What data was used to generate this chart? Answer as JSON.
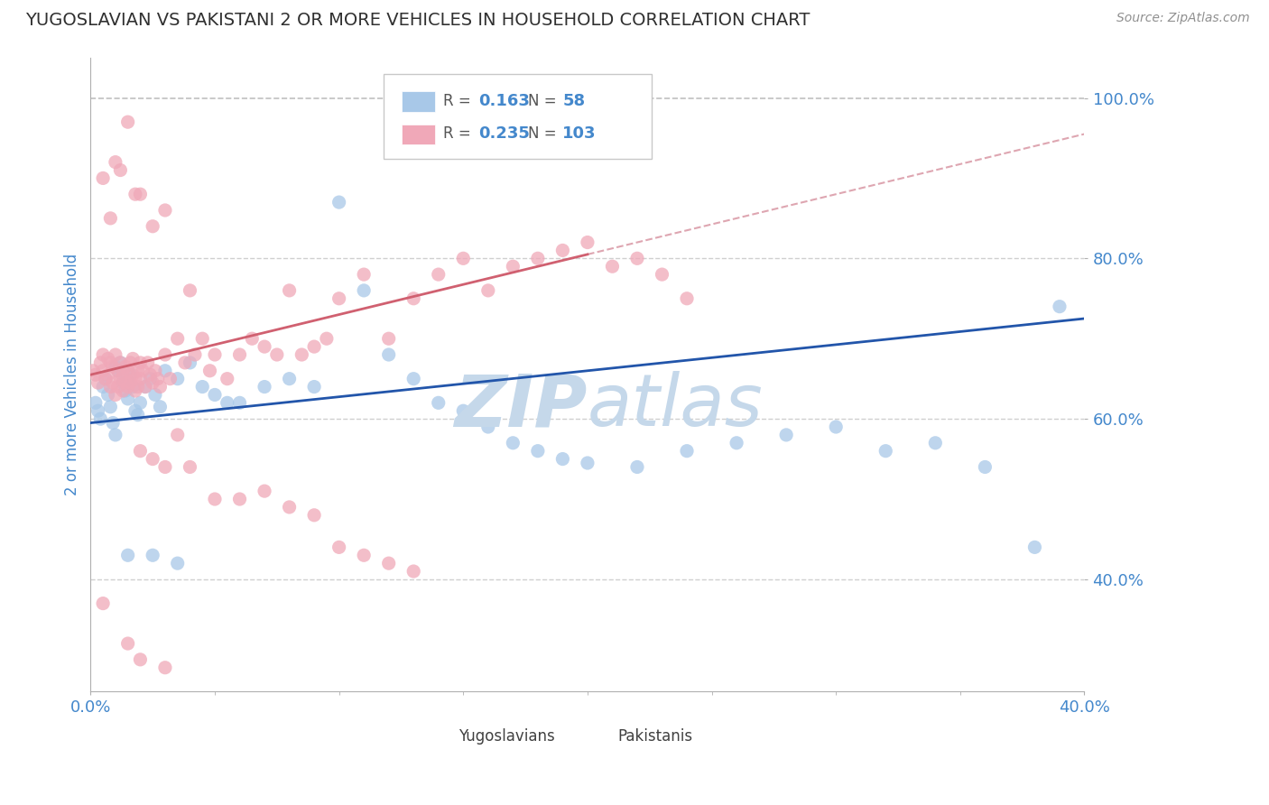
{
  "title": "YUGOSLAVIAN VS PAKISTANI 2 OR MORE VEHICLES IN HOUSEHOLD CORRELATION CHART",
  "source": "Source: ZipAtlas.com",
  "ylabel": "2 or more Vehicles in Household",
  "ytick_labels": [
    "40.0%",
    "60.0%",
    "80.0%",
    "100.0%"
  ],
  "ytick_values": [
    0.4,
    0.6,
    0.8,
    1.0
  ],
  "xlim": [
    0.0,
    0.4
  ],
  "ylim": [
    0.26,
    1.05
  ],
  "blue_color": "#a8c8e8",
  "pink_color": "#f0a8b8",
  "blue_line_color": "#2255aa",
  "pink_line_color": "#d06070",
  "pink_dash_color": "#d08090",
  "grid_color": "#d0d0d0",
  "watermark_color": "#c5d8ea",
  "title_color": "#303030",
  "tick_label_color": "#4488cc",
  "r_value_color": "#4488cc",
  "blue_r": "0.163",
  "blue_n": "58",
  "pink_r": "0.235",
  "pink_n": "103",
  "blue_scatter_x": [
    0.002,
    0.003,
    0.004,
    0.005,
    0.006,
    0.007,
    0.008,
    0.009,
    0.01,
    0.01,
    0.011,
    0.012,
    0.013,
    0.014,
    0.015,
    0.016,
    0.017,
    0.018,
    0.019,
    0.02,
    0.022,
    0.024,
    0.026,
    0.028,
    0.03,
    0.035,
    0.04,
    0.045,
    0.05,
    0.055,
    0.06,
    0.07,
    0.08,
    0.09,
    0.1,
    0.11,
    0.12,
    0.13,
    0.14,
    0.15,
    0.16,
    0.17,
    0.18,
    0.19,
    0.2,
    0.22,
    0.24,
    0.26,
    0.28,
    0.3,
    0.32,
    0.34,
    0.36,
    0.38,
    0.015,
    0.025,
    0.035,
    0.39
  ],
  "blue_scatter_y": [
    0.62,
    0.61,
    0.6,
    0.64,
    0.65,
    0.63,
    0.615,
    0.595,
    0.58,
    0.665,
    0.66,
    0.67,
    0.645,
    0.635,
    0.625,
    0.655,
    0.64,
    0.61,
    0.605,
    0.62,
    0.64,
    0.65,
    0.63,
    0.615,
    0.66,
    0.65,
    0.67,
    0.64,
    0.63,
    0.62,
    0.62,
    0.64,
    0.65,
    0.64,
    0.87,
    0.76,
    0.68,
    0.65,
    0.62,
    0.61,
    0.59,
    0.57,
    0.56,
    0.55,
    0.545,
    0.54,
    0.56,
    0.57,
    0.58,
    0.59,
    0.56,
    0.57,
    0.54,
    0.44,
    0.43,
    0.43,
    0.42,
    0.74
  ],
  "pink_scatter_x": [
    0.001,
    0.002,
    0.003,
    0.004,
    0.005,
    0.005,
    0.006,
    0.007,
    0.007,
    0.008,
    0.008,
    0.009,
    0.009,
    0.01,
    0.01,
    0.011,
    0.011,
    0.012,
    0.012,
    0.013,
    0.013,
    0.014,
    0.014,
    0.015,
    0.015,
    0.016,
    0.016,
    0.017,
    0.017,
    0.018,
    0.018,
    0.019,
    0.019,
    0.02,
    0.02,
    0.021,
    0.022,
    0.023,
    0.024,
    0.025,
    0.026,
    0.027,
    0.028,
    0.03,
    0.032,
    0.035,
    0.038,
    0.04,
    0.042,
    0.045,
    0.048,
    0.05,
    0.055,
    0.06,
    0.065,
    0.07,
    0.075,
    0.08,
    0.085,
    0.09,
    0.095,
    0.1,
    0.11,
    0.12,
    0.13,
    0.14,
    0.15,
    0.16,
    0.17,
    0.18,
    0.19,
    0.2,
    0.21,
    0.22,
    0.23,
    0.24,
    0.005,
    0.008,
    0.01,
    0.012,
    0.015,
    0.018,
    0.02,
    0.025,
    0.03,
    0.02,
    0.025,
    0.03,
    0.035,
    0.04,
    0.05,
    0.06,
    0.07,
    0.08,
    0.09,
    0.1,
    0.11,
    0.12,
    0.13,
    0.015,
    0.02,
    0.03,
    0.005
  ],
  "pink_scatter_y": [
    0.66,
    0.655,
    0.645,
    0.67,
    0.68,
    0.66,
    0.65,
    0.675,
    0.655,
    0.64,
    0.67,
    0.645,
    0.665,
    0.63,
    0.68,
    0.64,
    0.66,
    0.65,
    0.67,
    0.635,
    0.655,
    0.645,
    0.665,
    0.64,
    0.66,
    0.67,
    0.645,
    0.655,
    0.675,
    0.635,
    0.65,
    0.66,
    0.64,
    0.67,
    0.65,
    0.66,
    0.64,
    0.67,
    0.655,
    0.645,
    0.66,
    0.65,
    0.64,
    0.68,
    0.65,
    0.7,
    0.67,
    0.76,
    0.68,
    0.7,
    0.66,
    0.68,
    0.65,
    0.68,
    0.7,
    0.69,
    0.68,
    0.76,
    0.68,
    0.69,
    0.7,
    0.75,
    0.78,
    0.7,
    0.75,
    0.78,
    0.8,
    0.76,
    0.79,
    0.8,
    0.81,
    0.82,
    0.79,
    0.8,
    0.78,
    0.75,
    0.9,
    0.85,
    0.92,
    0.91,
    0.97,
    0.88,
    0.88,
    0.84,
    0.86,
    0.56,
    0.55,
    0.54,
    0.58,
    0.54,
    0.5,
    0.5,
    0.51,
    0.49,
    0.48,
    0.44,
    0.43,
    0.42,
    0.41,
    0.32,
    0.3,
    0.29,
    0.37
  ]
}
